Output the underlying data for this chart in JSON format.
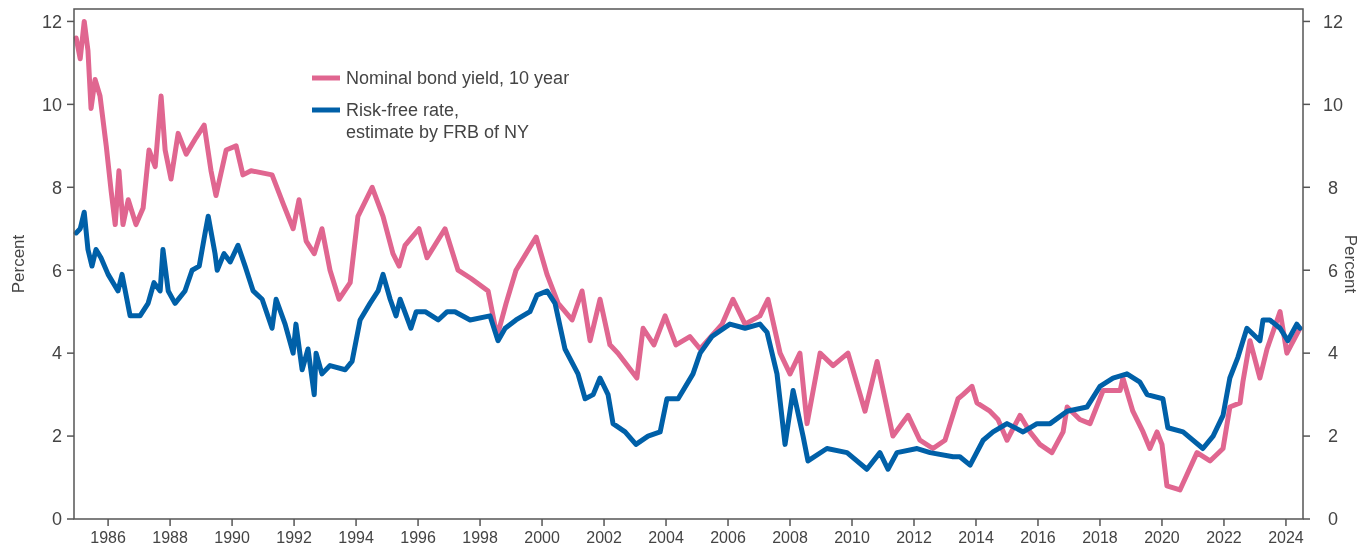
{
  "chart_data": {
    "type": "line",
    "ylabel": "Percent",
    "y2label": "Percent",
    "xlim": [
      1984.9,
      2024.55
    ],
    "xticks": [
      1986,
      1988,
      1990,
      1992,
      1994,
      1996,
      1998,
      2000,
      2002,
      2004,
      2006,
      2008,
      2010,
      2012,
      2014,
      2016,
      2018,
      2020,
      2022,
      2024
    ],
    "ylim": [
      0,
      12.3
    ],
    "yticks": [
      0,
      2,
      4,
      6,
      8,
      10,
      12
    ],
    "y2lim": [
      0,
      12.3
    ],
    "y2ticks": [
      0,
      2,
      4,
      6,
      8,
      10,
      12
    ],
    "legend": "top",
    "grid": false,
    "marker": "none",
    "line_style": "solid",
    "series": [
      {
        "name": "Nominal bond yield, 10 year",
        "color": "#e06690",
        "x": [
          1984.97,
          1985.1,
          1985.23,
          1985.35,
          1985.45,
          1985.58,
          1985.74,
          1985.94,
          1986.1,
          1986.23,
          1986.35,
          1986.48,
          1986.65,
          1986.9,
          1987.13,
          1987.32,
          1987.52,
          1987.71,
          1987.84,
          1988.03,
          1988.26,
          1988.52,
          1988.84,
          1989.1,
          1989.32,
          1989.48,
          1989.81,
          1990.13,
          1990.35,
          1990.61,
          1991.29,
          1991.65,
          1991.97,
          1992.16,
          1992.39,
          1992.65,
          1992.9,
          1993.16,
          1993.45,
          1993.81,
          1994.06,
          1994.52,
          1994.87,
          1995.19,
          1995.39,
          1995.58,
          1996.03,
          1996.29,
          1996.87,
          1997.29,
          1997.71,
          1998.26,
          1998.55,
          1998.84,
          1999.16,
          1999.81,
          2000.16,
          2000.52,
          2000.97,
          2001.29,
          2001.55,
          2001.87,
          2002.19,
          2002.45,
          2003.06,
          2003.26,
          2003.61,
          2003.97,
          2004.32,
          2004.77,
          2005.1,
          2005.81,
          2006.16,
          2006.55,
          2007.03,
          2007.29,
          2007.68,
          2008.0,
          2008.32,
          2008.55,
          2008.97,
          2009.39,
          2009.87,
          2010.42,
          2010.81,
          2011.32,
          2011.81,
          2012.19,
          2012.61,
          2013.0,
          2013.42,
          2013.58,
          2013.87,
          2014.03,
          2014.45,
          2014.71,
          2015.0,
          2015.42,
          2015.74,
          2016.06,
          2016.45,
          2016.81,
          2016.94,
          2017.35,
          2017.68,
          2018.1,
          2018.65,
          2018.74,
          2019.06,
          2019.39,
          2019.61,
          2019.84,
          2020.0,
          2020.16,
          2020.58,
          2021.13,
          2021.55,
          2021.97,
          2022.19,
          2022.52,
          2022.61,
          2022.84,
          2023.16,
          2023.39,
          2023.81,
          2024.03,
          2024.45
        ],
        "values": [
          11.6,
          11.1,
          12.0,
          11.3,
          9.9,
          10.6,
          10.2,
          9.0,
          7.9,
          7.1,
          8.4,
          7.1,
          7.7,
          7.1,
          7.5,
          8.9,
          8.5,
          10.2,
          8.9,
          8.2,
          9.3,
          8.8,
          9.2,
          9.5,
          8.4,
          7.8,
          8.9,
          9.0,
          8.3,
          8.4,
          8.3,
          7.6,
          7.0,
          7.7,
          6.7,
          6.4,
          7.0,
          6.0,
          5.3,
          5.7,
          7.3,
          8.0,
          7.3,
          6.4,
          6.1,
          6.6,
          7.0,
          6.3,
          7.0,
          6.0,
          5.8,
          5.5,
          4.4,
          5.2,
          6.0,
          6.8,
          5.9,
          5.2,
          4.8,
          5.5,
          4.3,
          5.3,
          4.2,
          4.0,
          3.4,
          4.6,
          4.2,
          4.9,
          4.2,
          4.4,
          4.1,
          4.7,
          5.3,
          4.7,
          4.9,
          5.3,
          4.0,
          3.5,
          4.0,
          2.3,
          4.0,
          3.7,
          4.0,
          2.6,
          3.8,
          2.0,
          2.5,
          1.9,
          1.7,
          1.9,
          2.9,
          3.0,
          3.2,
          2.8,
          2.6,
          2.4,
          1.9,
          2.5,
          2.1,
          1.8,
          1.6,
          2.1,
          2.7,
          2.4,
          2.3,
          3.1,
          3.1,
          3.4,
          2.6,
          2.1,
          1.7,
          2.1,
          1.8,
          0.8,
          0.7,
          1.6,
          1.4,
          1.7,
          2.7,
          2.8,
          3.3,
          4.3,
          3.4,
          4.1,
          5.0,
          4.0,
          4.6
        ]
      },
      {
        "name": "Risk-free rate,\nestimate by FRB of NY",
        "color": "#0060a8",
        "x": [
          1984.97,
          1985.1,
          1985.23,
          1985.35,
          1985.48,
          1985.61,
          1985.77,
          1986.0,
          1986.32,
          1986.45,
          1986.71,
          1987.03,
          1987.29,
          1987.48,
          1987.68,
          1987.77,
          1987.94,
          1988.16,
          1988.48,
          1988.71,
          1988.94,
          1989.13,
          1989.23,
          1989.45,
          1989.52,
          1989.74,
          1989.94,
          1990.19,
          1990.42,
          1990.68,
          1990.97,
          1991.29,
          1991.42,
          1991.71,
          1991.97,
          1992.06,
          1992.26,
          1992.45,
          1992.65,
          1992.71,
          1992.9,
          1993.16,
          1993.65,
          1993.87,
          1994.13,
          1994.45,
          1994.71,
          1994.87,
          1995.1,
          1995.29,
          1995.42,
          1995.77,
          1995.94,
          1996.23,
          1996.65,
          1996.94,
          1997.19,
          1997.68,
          1998.32,
          1998.58,
          1998.81,
          1999.16,
          1999.61,
          1999.84,
          2000.16,
          2000.42,
          2000.74,
          2001.16,
          2001.39,
          2001.65,
          2001.87,
          2002.13,
          2002.29,
          2002.68,
          2003.03,
          2003.42,
          2003.81,
          2004.03,
          2004.39,
          2004.87,
          2005.1,
          2005.48,
          2006.06,
          2006.55,
          2007.03,
          2007.26,
          2007.58,
          2007.84,
          2008.1,
          2008.42,
          2008.58,
          2009.19,
          2009.84,
          2010.48,
          2010.9,
          2011.16,
          2011.45,
          2012.1,
          2012.52,
          2013.26,
          2013.48,
          2013.81,
          2014.23,
          2014.55,
          2015.0,
          2015.52,
          2015.97,
          2016.39,
          2016.94,
          2017.58,
          2018.0,
          2018.42,
          2018.87,
          2019.29,
          2019.52,
          2020.03,
          2020.19,
          2020.68,
          2021.32,
          2021.65,
          2021.97,
          2022.19,
          2022.45,
          2022.74,
          2023.16,
          2023.26,
          2023.48,
          2023.81,
          2024.06,
          2024.35,
          2024.45
        ],
        "values": [
          6.9,
          7.0,
          7.4,
          6.5,
          6.1,
          6.5,
          6.3,
          5.9,
          5.5,
          5.9,
          4.9,
          4.9,
          5.2,
          5.7,
          5.5,
          6.5,
          5.5,
          5.2,
          5.5,
          6.0,
          6.1,
          6.9,
          7.3,
          6.4,
          6.0,
          6.4,
          6.2,
          6.6,
          6.1,
          5.5,
          5.3,
          4.6,
          5.3,
          4.7,
          4.0,
          4.7,
          3.6,
          4.1,
          3.0,
          4.0,
          3.5,
          3.7,
          3.6,
          3.8,
          4.8,
          5.2,
          5.5,
          5.9,
          5.3,
          4.9,
          5.3,
          4.6,
          5.0,
          5.0,
          4.8,
          5.0,
          5.0,
          4.8,
          4.9,
          4.3,
          4.6,
          4.8,
          5.0,
          5.4,
          5.5,
          5.2,
          4.1,
          3.5,
          2.9,
          3.0,
          3.4,
          3.0,
          2.3,
          2.1,
          1.8,
          2.0,
          2.1,
          2.9,
          2.9,
          3.5,
          4.0,
          4.4,
          4.7,
          4.6,
          4.7,
          4.5,
          3.5,
          1.8,
          3.1,
          2.0,
          1.4,
          1.7,
          1.6,
          1.2,
          1.6,
          1.2,
          1.6,
          1.7,
          1.6,
          1.5,
          1.5,
          1.3,
          1.9,
          2.1,
          2.3,
          2.1,
          2.3,
          2.3,
          2.6,
          2.7,
          3.2,
          3.4,
          3.5,
          3.3,
          3.0,
          2.9,
          2.2,
          2.1,
          1.7,
          2.0,
          2.5,
          3.4,
          3.9,
          4.6,
          4.3,
          4.8,
          4.8,
          4.6,
          4.3,
          4.7,
          4.6
        ]
      }
    ]
  }
}
